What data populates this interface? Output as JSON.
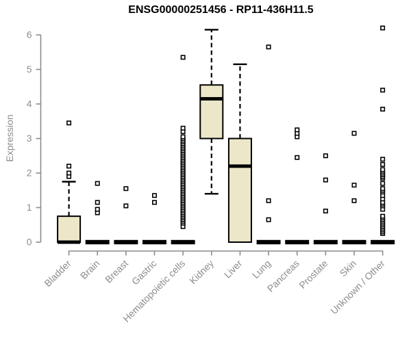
{
  "chart_data": {
    "type": "boxplot",
    "title": "ENSG00000251456 - RP11-436H11.5",
    "xlabel": "",
    "ylabel": "Expression",
    "ylim": [
      0,
      6.4
    ],
    "y_ticks": [
      0,
      1,
      2,
      3,
      4,
      5,
      6
    ],
    "grid": false,
    "legend": "none",
    "categories": [
      "Bladder",
      "Brain",
      "Breast",
      "Gastric",
      "Hematopoietic cells",
      "Kidney",
      "Liver",
      "Lung",
      "Pancreas",
      "Prostate",
      "Skin",
      "Unknown / Other"
    ],
    "boxes": [
      {
        "whisker_low": 0,
        "q1": 0,
        "median": 0,
        "q3": 0.75,
        "whisker_high": 1.75,
        "outliers": [
          1.9,
          2.0,
          2.2,
          3.45
        ]
      },
      {
        "whisker_low": 0,
        "q1": 0,
        "median": 0,
        "q3": 0,
        "whisker_high": 0,
        "outliers": [
          0.85,
          0.95,
          1.15,
          1.7
        ]
      },
      {
        "whisker_low": 0,
        "q1": 0,
        "median": 0,
        "q3": 0,
        "whisker_high": 0,
        "outliers": [
          1.05,
          1.55
        ]
      },
      {
        "whisker_low": 0,
        "q1": 0,
        "median": 0,
        "q3": 0,
        "whisker_high": 0,
        "outliers": [
          1.15,
          1.35
        ]
      },
      {
        "whisker_low": 0,
        "q1": 0,
        "median": 0,
        "q3": 0,
        "whisker_high": 0,
        "outliers": [
          0.45,
          0.55,
          0.6,
          0.65,
          0.7,
          0.75,
          0.8,
          0.85,
          0.9,
          0.95,
          1.0,
          1.05,
          1.1,
          1.15,
          1.2,
          1.25,
          1.3,
          1.35,
          1.4,
          1.45,
          1.5,
          1.55,
          1.6,
          1.65,
          1.7,
          1.75,
          1.8,
          1.85,
          1.9,
          1.95,
          2.0,
          2.05,
          2.1,
          2.15,
          2.2,
          2.25,
          2.3,
          2.35,
          2.4,
          2.45,
          2.5,
          2.55,
          2.6,
          2.65,
          2.7,
          2.75,
          2.8,
          2.85,
          2.9,
          2.95,
          3.0,
          3.05,
          3.2,
          3.3,
          5.35
        ]
      },
      {
        "whisker_low": 1.4,
        "q1": 3.0,
        "median": 4.15,
        "q3": 4.55,
        "whisker_high": 6.15,
        "outliers": []
      },
      {
        "whisker_low": 0,
        "q1": 0,
        "median": 2.2,
        "q3": 3.0,
        "whisker_high": 5.15,
        "outliers": []
      },
      {
        "whisker_low": 0,
        "q1": 0,
        "median": 0,
        "q3": 0,
        "whisker_high": 0,
        "outliers": [
          0.65,
          1.2,
          5.65
        ]
      },
      {
        "whisker_low": 0,
        "q1": 0,
        "median": 0,
        "q3": 0,
        "whisker_high": 0,
        "outliers": [
          2.45,
          3.05,
          3.15,
          3.25
        ]
      },
      {
        "whisker_low": 0,
        "q1": 0,
        "median": 0,
        "q3": 0,
        "whisker_high": 0,
        "outliers": [
          0.9,
          1.8,
          2.5
        ]
      },
      {
        "whisker_low": 0,
        "q1": 0,
        "median": 0,
        "q3": 0,
        "whisker_high": 0,
        "outliers": [
          1.2,
          1.65,
          3.15
        ]
      },
      {
        "whisker_low": 0,
        "q1": 0,
        "median": 0,
        "q3": 0,
        "whisker_high": 0,
        "outliers": [
          0.25,
          0.3,
          0.35,
          0.4,
          0.45,
          0.5,
          0.55,
          0.6,
          0.65,
          0.7,
          0.75,
          0.95,
          1.05,
          1.1,
          1.15,
          1.25,
          1.35,
          1.45,
          1.5,
          1.55,
          1.7,
          1.85,
          1.9,
          1.95,
          2.0,
          2.05,
          2.1,
          2.25,
          2.4,
          3.85,
          4.4,
          6.2
        ]
      }
    ],
    "colors": {
      "box_fill": "#EDE7CA",
      "box_border": "#000000",
      "median": "#000000",
      "whisker": "#000000",
      "flat_bar": "#000000",
      "outlier_stroke": "#000000",
      "outlier_fill": "#FFFFFF",
      "axis": "#8C8C8C",
      "tick_label": "#8C8C8C",
      "title": "#000000",
      "background": "#FFFFFF"
    }
  }
}
